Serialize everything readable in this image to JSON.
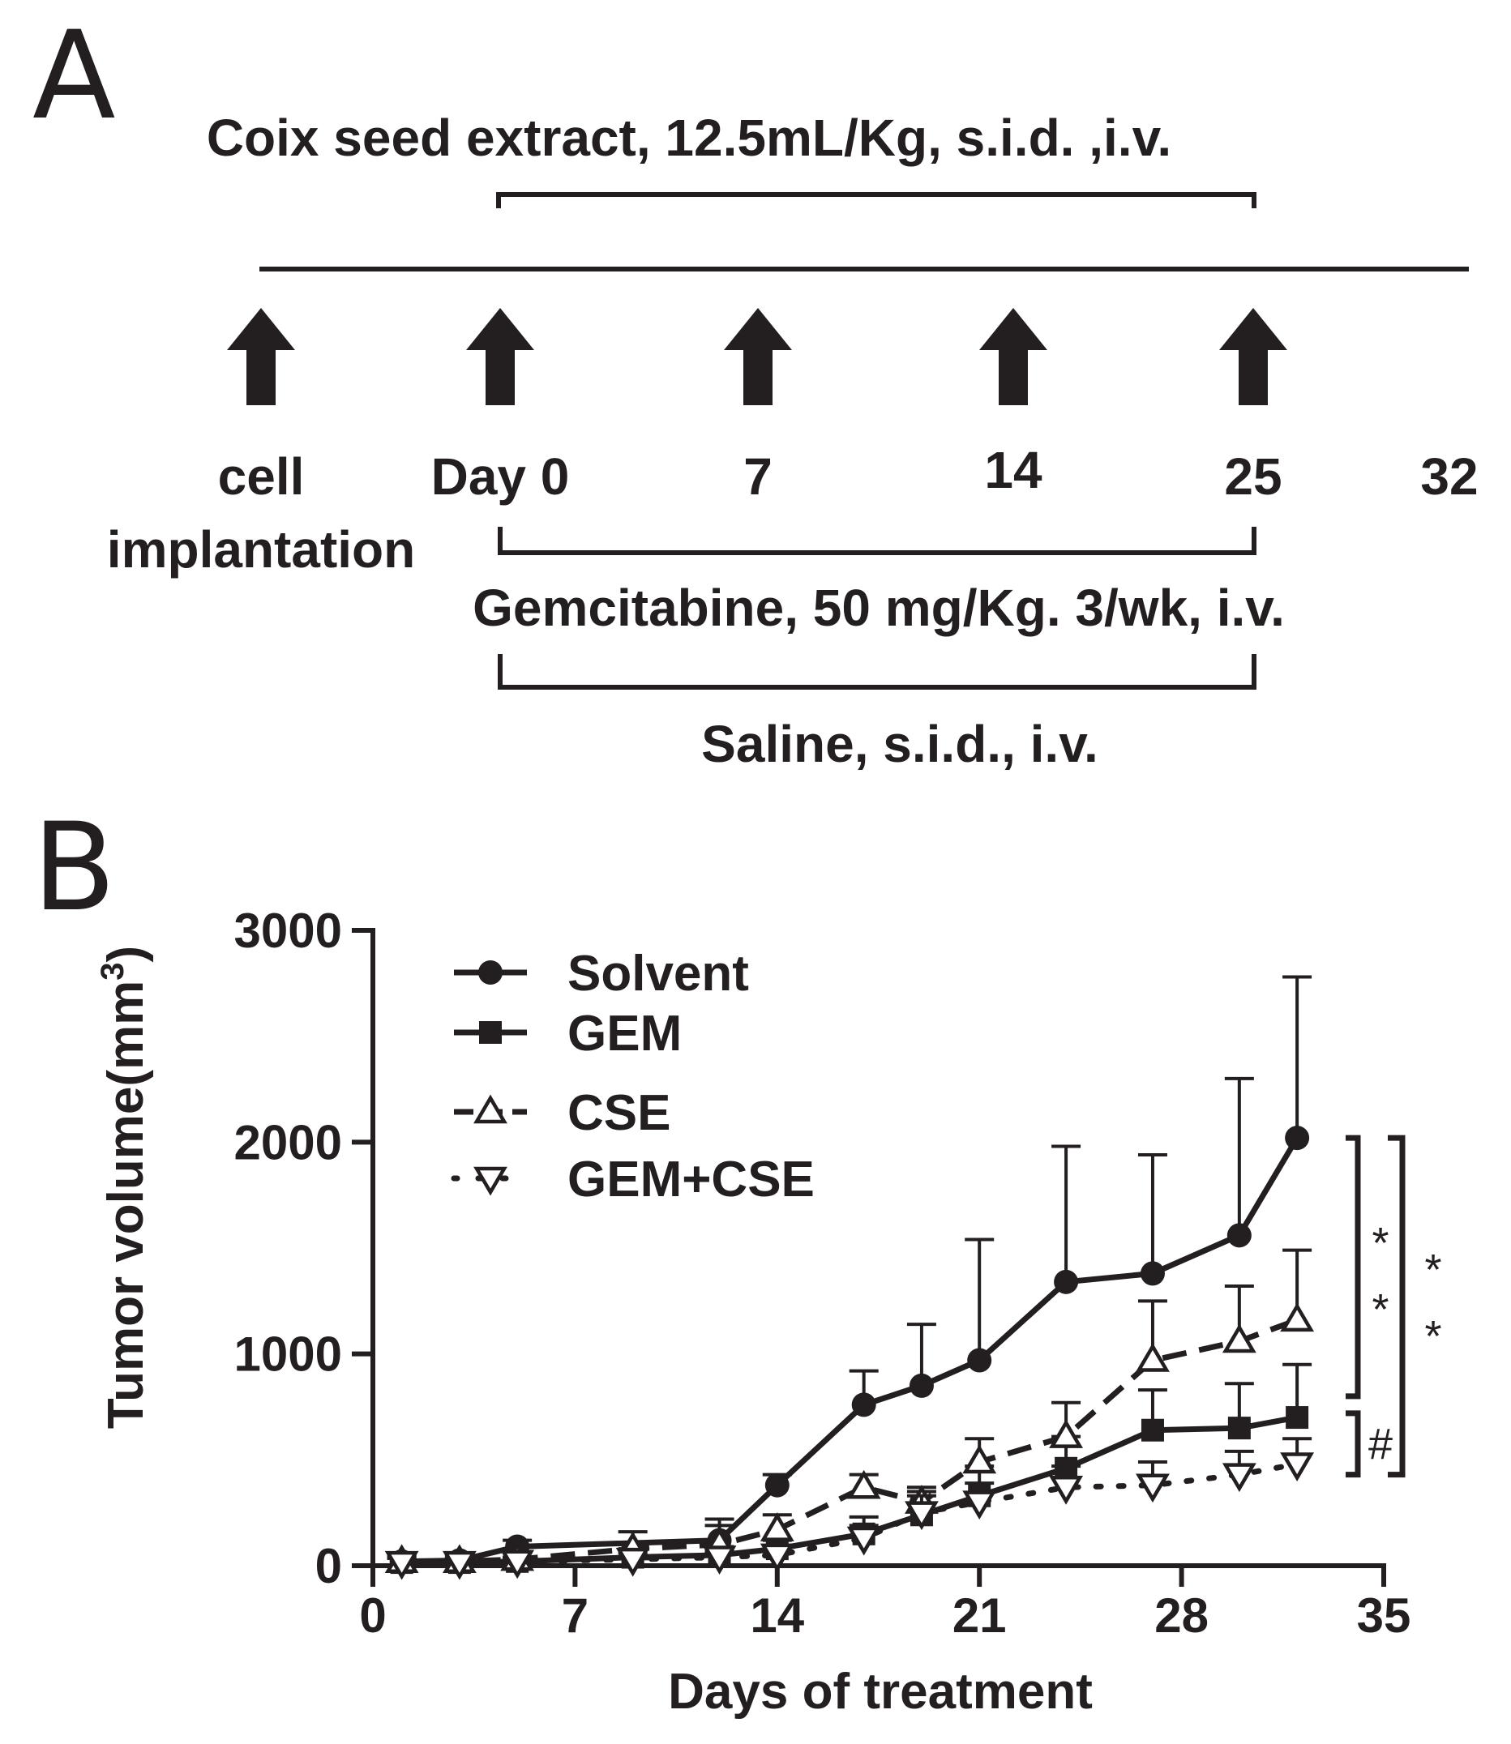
{
  "panel_a": {
    "letter": "A",
    "cse_label": "Coix seed extract, 12.5mL/Kg, s.i.d. ,i.v.",
    "timepoints": [
      {
        "lines": [
          "cell",
          "implantation"
        ]
      },
      {
        "lines": [
          "Day 0"
        ]
      },
      {
        "lines": [
          "7"
        ]
      },
      {
        "lines": [
          "14"
        ]
      },
      {
        "lines": [
          "25"
        ]
      },
      {
        "lines": [
          "32"
        ]
      }
    ],
    "gem_label": "Gemcitabine, 50 mg/Kg. 3/wk, i.v.",
    "saline_label": "Saline, s.i.d., i.v."
  },
  "panel_b": {
    "letter": "B"
  },
  "chart_data": {
    "type": "line",
    "xlabel": "Days of treatment",
    "ylabel": "Tumor volume(mm",
    "ylabel_sup": "3",
    "ylabel_close": ")",
    "xlim": [
      0,
      35
    ],
    "ylim": [
      0,
      3000
    ],
    "xticks": [
      0,
      7,
      14,
      21,
      28,
      35
    ],
    "yticks": [
      0,
      1000,
      2000,
      3000
    ],
    "legend_position": "top-left",
    "series": [
      {
        "name": "Solvent",
        "marker": "circle",
        "line": "solid",
        "x": [
          1,
          3,
          5,
          12,
          14,
          17,
          19,
          21,
          24,
          27,
          30,
          32
        ],
        "y": [
          20,
          25,
          90,
          120,
          380,
          760,
          850,
          970,
          1340,
          1380,
          1560,
          2020
        ],
        "err": [
          30,
          30,
          30,
          100,
          50,
          160,
          290,
          570,
          640,
          560,
          740,
          760
        ]
      },
      {
        "name": "GEM",
        "marker": "square",
        "line": "solid",
        "x": [
          1,
          3,
          5,
          9,
          12,
          14,
          17,
          19,
          21,
          24,
          27,
          30,
          32
        ],
        "y": [
          15,
          15,
          20,
          40,
          50,
          80,
          150,
          240,
          330,
          460,
          640,
          650,
          700
        ],
        "err": [
          20,
          20,
          20,
          40,
          40,
          40,
          80,
          110,
          140,
          150,
          190,
          210,
          250
        ]
      },
      {
        "name": "CSE",
        "marker": "triangle-up",
        "line": "dashed",
        "x": [
          1,
          3,
          5,
          9,
          12,
          14,
          17,
          19,
          21,
          24,
          27,
          30,
          32
        ],
        "y": [
          20,
          20,
          30,
          80,
          100,
          170,
          370,
          300,
          490,
          610,
          970,
          1060,
          1160
        ],
        "err": [
          30,
          30,
          30,
          80,
          90,
          70,
          60,
          70,
          110,
          160,
          280,
          260,
          330
        ]
      },
      {
        "name": "GEM+CSE",
        "marker": "triangle-down",
        "line": "dotted",
        "x": [
          1,
          3,
          5,
          9,
          12,
          14,
          17,
          19,
          21,
          24,
          27,
          30,
          32
        ],
        "y": [
          15,
          15,
          20,
          30,
          40,
          50,
          130,
          250,
          300,
          370,
          380,
          430,
          480
        ],
        "err": [
          20,
          20,
          20,
          30,
          30,
          30,
          60,
          80,
          90,
          100,
          110,
          110,
          120
        ]
      }
    ],
    "annotations": {
      "inner_stars": [
        "*",
        "*"
      ],
      "outer_stars": [
        "*",
        "*"
      ],
      "hash": "#"
    }
  }
}
